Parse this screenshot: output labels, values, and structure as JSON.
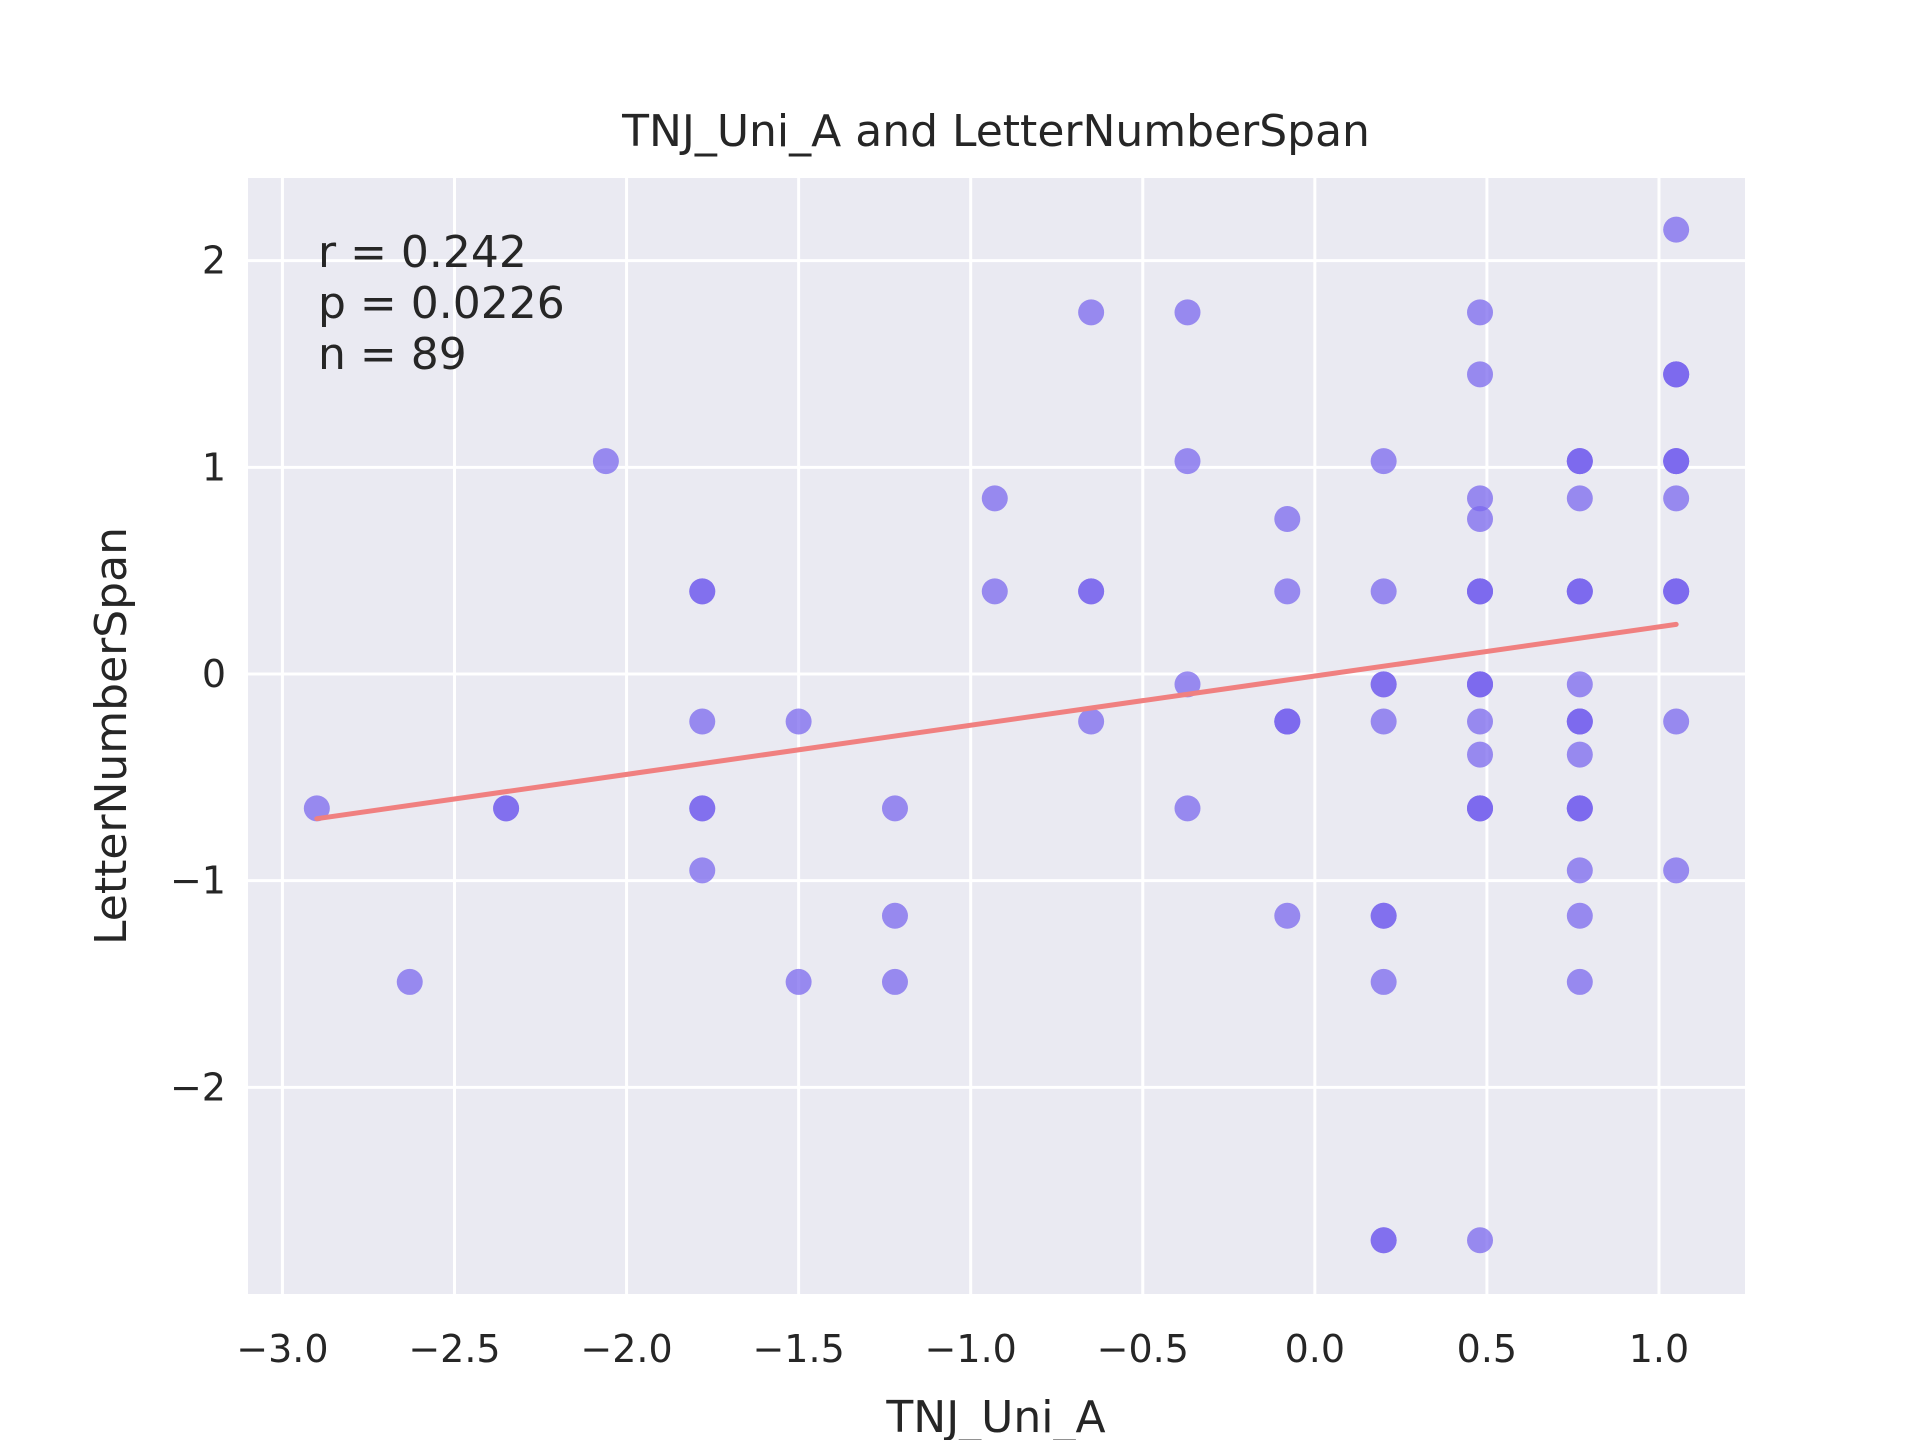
{
  "chart_data": {
    "type": "scatter",
    "title": "TNJ_Uni_A and LetterNumberSpan",
    "xlabel": "TNJ_Uni_A",
    "ylabel": "LetterNumberSpan",
    "xlim": [
      -3.1,
      1.25
    ],
    "ylim": [
      -3.0,
      2.4
    ],
    "xticks": [
      -3.0,
      -2.5,
      -2.0,
      -1.5,
      -1.0,
      -0.5,
      0.0,
      0.5,
      1.0
    ],
    "xtick_labels": [
      "−3.0",
      "−2.5",
      "−2.0",
      "−1.5",
      "−1.0",
      "−0.5",
      "0.0",
      "0.5",
      "1.0"
    ],
    "yticks": [
      -2,
      -1,
      0,
      1,
      2
    ],
    "ytick_labels": [
      "−2",
      "−1",
      "0",
      "1",
      "2"
    ],
    "grid": true,
    "point_color": "#7b68ee",
    "line_color": "#f08080",
    "background_color": "#eaeaf2",
    "annotations": [
      "r = 0.242",
      "p = 0.0226",
      "n = 89"
    ],
    "regression_line": {
      "x": [
        -2.9,
        1.05
      ],
      "y": [
        -0.7,
        0.24
      ]
    },
    "points": [
      [
        -2.9,
        -0.65
      ],
      [
        -2.63,
        -1.49
      ],
      [
        -2.35,
        -0.65
      ],
      [
        -2.35,
        -0.65
      ],
      [
        -2.06,
        1.03
      ],
      [
        -1.78,
        0.4
      ],
      [
        -1.78,
        0.4
      ],
      [
        -1.78,
        -0.23
      ],
      [
        -1.78,
        -0.65
      ],
      [
        -1.78,
        -0.65
      ],
      [
        -1.78,
        -0.95
      ],
      [
        -1.5,
        -0.23
      ],
      [
        -1.5,
        -1.49
      ],
      [
        -1.22,
        -0.65
      ],
      [
        -1.22,
        -1.17
      ],
      [
        -1.22,
        -1.49
      ],
      [
        -0.93,
        0.85
      ],
      [
        -0.93,
        0.4
      ],
      [
        -0.65,
        1.75
      ],
      [
        -0.65,
        0.4
      ],
      [
        -0.65,
        0.4
      ],
      [
        -0.65,
        -0.23
      ],
      [
        -0.37,
        1.75
      ],
      [
        -0.37,
        1.03
      ],
      [
        -0.37,
        -0.05
      ],
      [
        -0.37,
        -0.65
      ],
      [
        -0.08,
        0.75
      ],
      [
        -0.08,
        0.4
      ],
      [
        -0.08,
        -0.23
      ],
      [
        -0.08,
        -0.23
      ],
      [
        -0.08,
        -0.23
      ],
      [
        -0.08,
        -1.17
      ],
      [
        0.2,
        1.03
      ],
      [
        0.2,
        0.4
      ],
      [
        0.2,
        -0.05
      ],
      [
        0.2,
        -0.05
      ],
      [
        0.2,
        -0.23
      ],
      [
        0.2,
        -1.17
      ],
      [
        0.2,
        -1.17
      ],
      [
        0.2,
        -1.49
      ],
      [
        0.2,
        -2.74
      ],
      [
        0.2,
        -2.74
      ],
      [
        0.48,
        1.75
      ],
      [
        0.48,
        1.45
      ],
      [
        0.48,
        0.85
      ],
      [
        0.48,
        0.75
      ],
      [
        0.48,
        0.4
      ],
      [
        0.48,
        0.4
      ],
      [
        0.48,
        0.4
      ],
      [
        0.48,
        -0.05
      ],
      [
        0.48,
        -0.05
      ],
      [
        0.48,
        -0.05
      ],
      [
        0.48,
        -0.23
      ],
      [
        0.48,
        -0.39
      ],
      [
        0.48,
        -0.65
      ],
      [
        0.48,
        -0.65
      ],
      [
        0.48,
        -0.65
      ],
      [
        0.48,
        -2.74
      ],
      [
        0.77,
        1.03
      ],
      [
        0.77,
        1.03
      ],
      [
        0.77,
        1.03
      ],
      [
        0.77,
        0.85
      ],
      [
        0.77,
        0.4
      ],
      [
        0.77,
        0.4
      ],
      [
        0.77,
        0.4
      ],
      [
        0.77,
        -0.05
      ],
      [
        0.77,
        -0.23
      ],
      [
        0.77,
        -0.23
      ],
      [
        0.77,
        -0.23
      ],
      [
        0.77,
        -0.39
      ],
      [
        0.77,
        -0.65
      ],
      [
        0.77,
        -0.65
      ],
      [
        0.77,
        -0.65
      ],
      [
        0.77,
        -0.95
      ],
      [
        0.77,
        -1.17
      ],
      [
        0.77,
        -1.49
      ],
      [
        1.05,
        2.15
      ],
      [
        1.05,
        1.45
      ],
      [
        1.05,
        1.45
      ],
      [
        1.05,
        1.45
      ],
      [
        1.05,
        1.03
      ],
      [
        1.05,
        1.03
      ],
      [
        1.05,
        1.03
      ],
      [
        1.05,
        0.85
      ],
      [
        1.05,
        0.4
      ],
      [
        1.05,
        0.4
      ],
      [
        1.05,
        0.4
      ],
      [
        1.05,
        -0.23
      ],
      [
        1.05,
        -0.95
      ]
    ]
  }
}
